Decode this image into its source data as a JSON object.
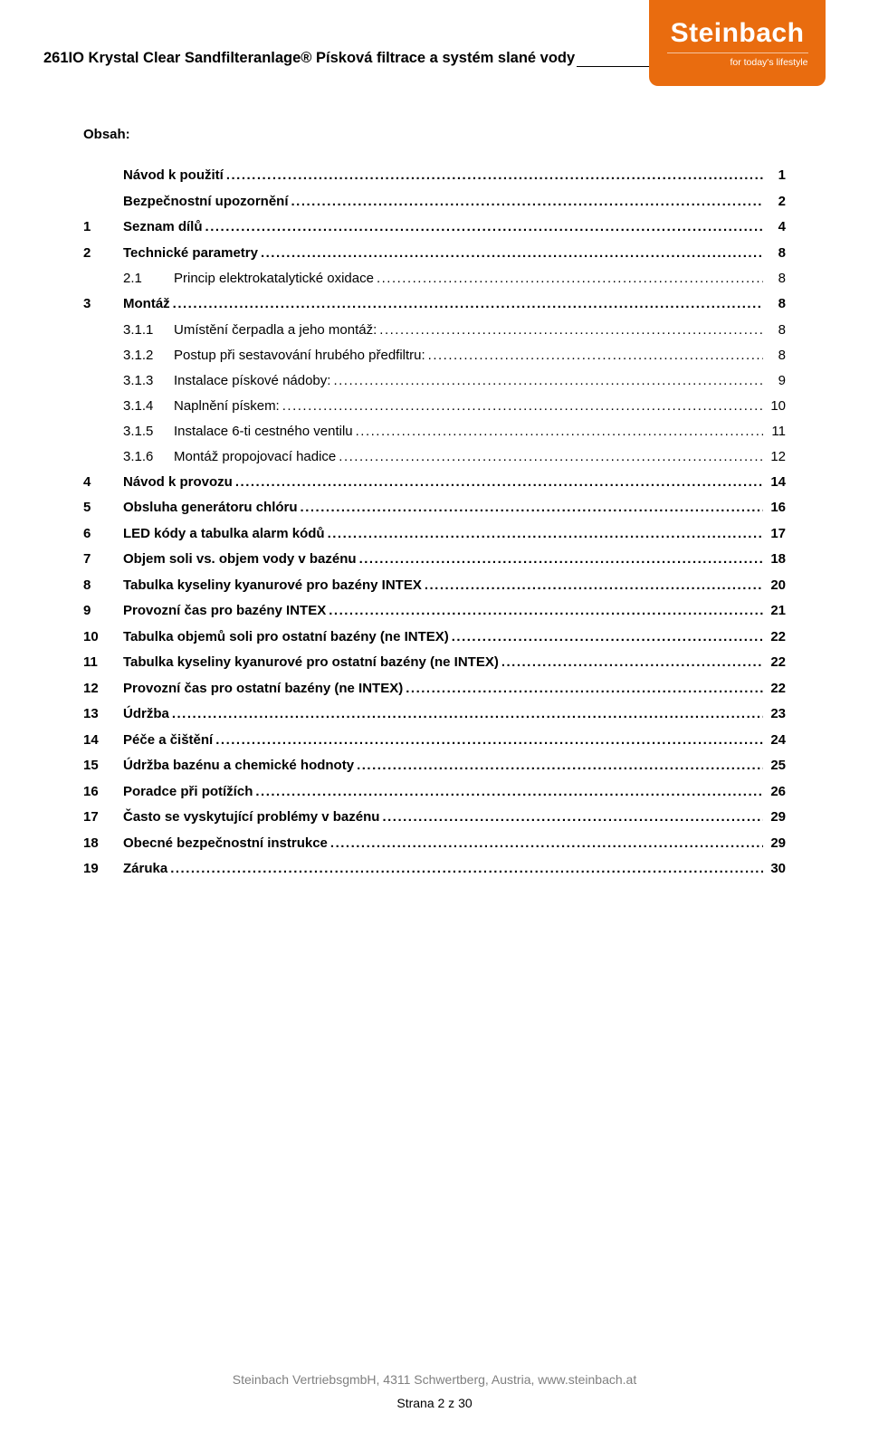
{
  "header": {
    "title": "261IO Krystal Clear Sandfilteranlage® Písková filtrace a systém slané vody"
  },
  "logo": {
    "brand": "Steinbach",
    "tagline": "for today's lifestyle",
    "bg_color": "#e96c0f",
    "text_color": "#ffffff"
  },
  "obsah_label": "Obsah:",
  "toc": [
    {
      "num": "",
      "sub": "",
      "title": "Návod k použití",
      "page": "1",
      "bold": true,
      "level": 0
    },
    {
      "num": "",
      "sub": "",
      "title": "Bezpečnostní upozornění",
      "page": "2",
      "bold": true,
      "level": 0
    },
    {
      "num": "1",
      "sub": "",
      "title": "Seznam dílů",
      "page": "4",
      "bold": true,
      "level": 0
    },
    {
      "num": "2",
      "sub": "",
      "title": "Technické parametry",
      "page": "8",
      "bold": true,
      "level": 0
    },
    {
      "num": "",
      "sub": "2.1",
      "title": "Princip elektrokatalytické oxidace",
      "page": "8",
      "bold": false,
      "level": 1
    },
    {
      "num": "3",
      "sub": "",
      "title": "Montáž",
      "page": "8",
      "bold": true,
      "level": 0
    },
    {
      "num": "",
      "sub": "3.1.1",
      "title": "Umístění čerpadla a jeho montáž:",
      "page": "8",
      "bold": false,
      "level": 1
    },
    {
      "num": "",
      "sub": "3.1.2",
      "title": "Postup při sestavování hrubého předfiltru:",
      "page": "8",
      "bold": false,
      "level": 1
    },
    {
      "num": "",
      "sub": "3.1.3",
      "title": "Instalace pískové nádoby:",
      "page": "9",
      "bold": false,
      "level": 1
    },
    {
      "num": "",
      "sub": "3.1.4",
      "title": "Naplnění pískem:",
      "page": "10",
      "bold": false,
      "level": 1
    },
    {
      "num": "",
      "sub": "3.1.5",
      "title": "Instalace 6-ti cestného ventilu",
      "page": "11",
      "bold": false,
      "level": 1
    },
    {
      "num": "",
      "sub": "3.1.6",
      "title": "Montáž propojovací hadice",
      "page": "12",
      "bold": false,
      "level": 1
    },
    {
      "num": "4",
      "sub": "",
      "title": "Návod k provozu",
      "page": "14",
      "bold": true,
      "level": 0
    },
    {
      "num": "5",
      "sub": "",
      "title": "Obsluha generátoru chlóru",
      "page": "16",
      "bold": true,
      "level": 0
    },
    {
      "num": "6",
      "sub": "",
      "title": "LED kódy a tabulka alarm kódů",
      "page": "17",
      "bold": true,
      "level": 0
    },
    {
      "num": "7",
      "sub": "",
      "title": "Objem soli vs. objem vody v bazénu",
      "page": "18",
      "bold": true,
      "level": 0
    },
    {
      "num": "8",
      "sub": "",
      "title": "Tabulka kyseliny kyanurové pro bazény INTEX",
      "page": "20",
      "bold": true,
      "level": 0
    },
    {
      "num": "9",
      "sub": "",
      "title": "Provozní čas pro bazény INTEX",
      "page": "21",
      "bold": true,
      "level": 0
    },
    {
      "num": "10",
      "sub": "",
      "title": "Tabulka objemů soli pro ostatní bazény (ne INTEX)",
      "page": "22",
      "bold": true,
      "level": 0
    },
    {
      "num": "11",
      "sub": "",
      "title": "Tabulka kyseliny kyanurové pro ostatní bazény (ne INTEX)",
      "page": "22",
      "bold": true,
      "level": 0
    },
    {
      "num": "12",
      "sub": "",
      "title": "Provozní čas pro ostatní bazény (ne INTEX)",
      "page": "22",
      "bold": true,
      "level": 0
    },
    {
      "num": "13",
      "sub": "",
      "title": "Údržba",
      "page": "23",
      "bold": true,
      "level": 0
    },
    {
      "num": "14",
      "sub": "",
      "title": "Péče a čištění",
      "page": "24",
      "bold": true,
      "level": 0
    },
    {
      "num": "15",
      "sub": "",
      "title": "Údržba bazénu a chemické hodnoty",
      "page": "25",
      "bold": true,
      "level": 0
    },
    {
      "num": "16",
      "sub": "",
      "title": "Poradce při potížích",
      "page": "26",
      "bold": true,
      "level": 0
    },
    {
      "num": "17",
      "sub": "",
      "title": "Často se vyskytující problémy v bazénu",
      "page": "29",
      "bold": true,
      "level": 0
    },
    {
      "num": "18",
      "sub": "",
      "title": "Obecné bezpečnostní instrukce",
      "page": "29",
      "bold": true,
      "level": 0
    },
    {
      "num": "19",
      "sub": "",
      "title": "Záruka",
      "page": "30",
      "bold": true,
      "level": 0
    }
  ],
  "footer": {
    "company": "Steinbach VertriebsgmbH, 4311 Schwertberg, Austria, www.steinbach.at",
    "page_label": "Strana 2 z 30"
  }
}
